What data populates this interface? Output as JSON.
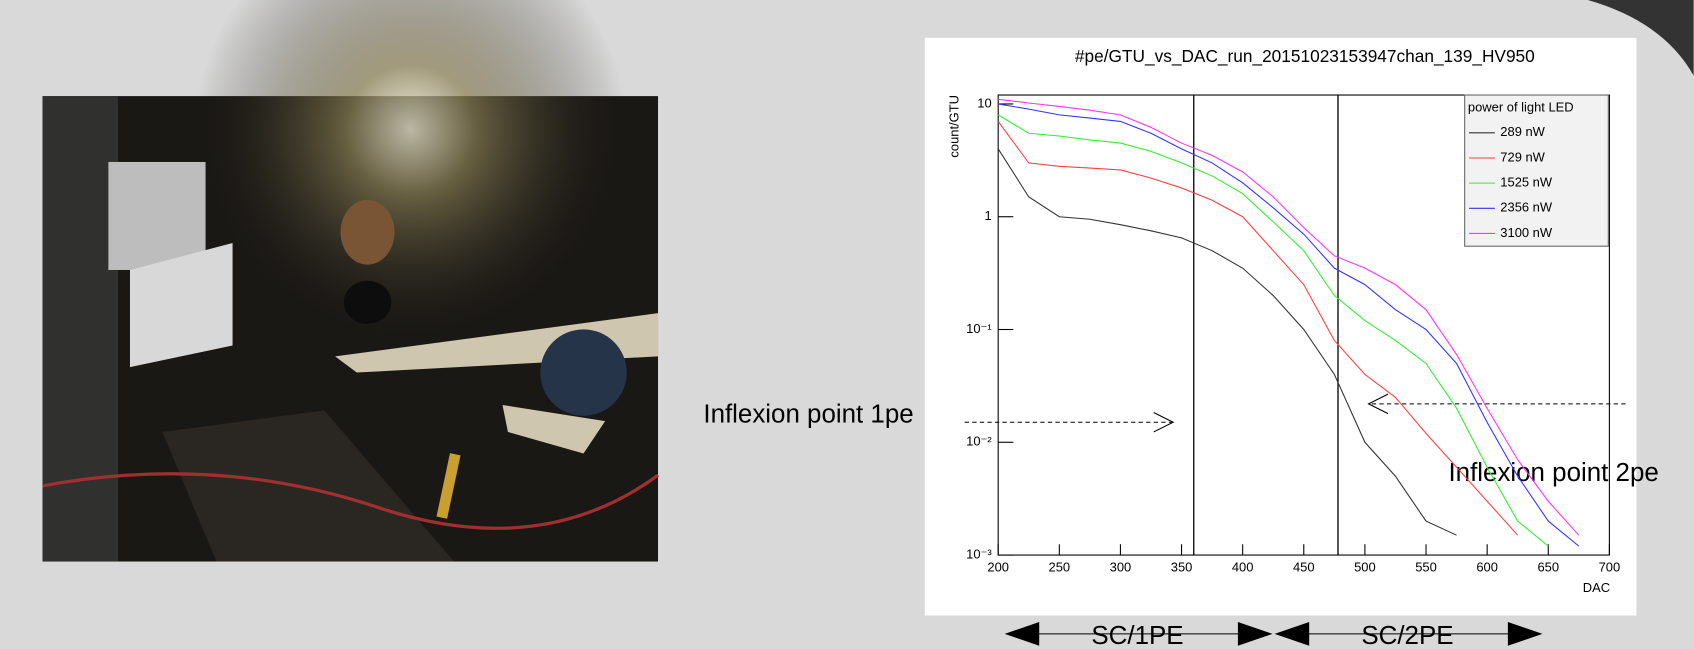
{
  "chart_data": {
    "type": "line",
    "title": "#pe/GTU_vs_DAC_run_20151023153947chan_139_HV950",
    "x_label": "DAC",
    "y_label": "count/GTU",
    "log_y": true,
    "xlim": [
      200,
      700
    ],
    "ylim": [
      0.001,
      12
    ],
    "xticks": [
      200,
      250,
      300,
      350,
      400,
      450,
      500,
      550,
      600,
      650,
      700
    ],
    "yticks": [
      {
        "value": 0.001,
        "label": "10⁻³"
      },
      {
        "value": 0.01,
        "label": "10⁻²"
      },
      {
        "value": 0.1,
        "label": "10⁻¹"
      },
      1,
      10
    ],
    "legend_title": "power of light LED",
    "legend_position": "upper right",
    "x": [
      200,
      225,
      250,
      275,
      300,
      325,
      350,
      375,
      400,
      425,
      450,
      475,
      500,
      525,
      550,
      575,
      600,
      625,
      650,
      675
    ],
    "series": [
      {
        "name": "289 nW",
        "color": "#333333",
        "values": [
          4,
          1.5,
          1.0,
          0.95,
          0.85,
          0.75,
          0.65,
          0.5,
          0.35,
          0.2,
          0.1,
          0.04,
          0.01,
          0.005,
          0.002,
          0.0015,
          null,
          null,
          null,
          null
        ]
      },
      {
        "name": "729 nW",
        "color": "#ff4040",
        "values": [
          7,
          3,
          2.8,
          2.7,
          2.6,
          2.2,
          1.8,
          1.4,
          1.0,
          0.5,
          0.25,
          0.08,
          0.04,
          0.025,
          0.012,
          0.006,
          0.003,
          0.0015,
          null,
          null
        ]
      },
      {
        "name": "1525 nW",
        "color": "#33ee33",
        "values": [
          8,
          5.5,
          5.2,
          4.8,
          4.5,
          3.8,
          3.0,
          2.3,
          1.6,
          0.9,
          0.5,
          0.2,
          0.12,
          0.08,
          0.05,
          0.02,
          0.006,
          0.002,
          0.0012,
          null
        ]
      },
      {
        "name": "2356 nW",
        "color": "#3333ff",
        "values": [
          10,
          9,
          8,
          7.5,
          7,
          5.5,
          4,
          3,
          2,
          1.2,
          0.7,
          0.35,
          0.25,
          0.15,
          0.1,
          0.05,
          0.015,
          0.005,
          0.002,
          0.0012
        ]
      },
      {
        "name": "3100 nW",
        "color": "#ff33ff",
        "values": [
          11,
          10.2,
          9.5,
          8.8,
          8,
          6.2,
          4.5,
          3.5,
          2.5,
          1.5,
          0.8,
          0.45,
          0.35,
          0.25,
          0.15,
          0.06,
          0.02,
          0.007,
          0.003,
          0.0015
        ]
      }
    ],
    "reference_lines": [
      360,
      478
    ],
    "annotations": [
      "Inflexion point 1pe",
      "Inflexion point 2pe",
      "SC/1PE",
      "SC/2PE"
    ]
  }
}
